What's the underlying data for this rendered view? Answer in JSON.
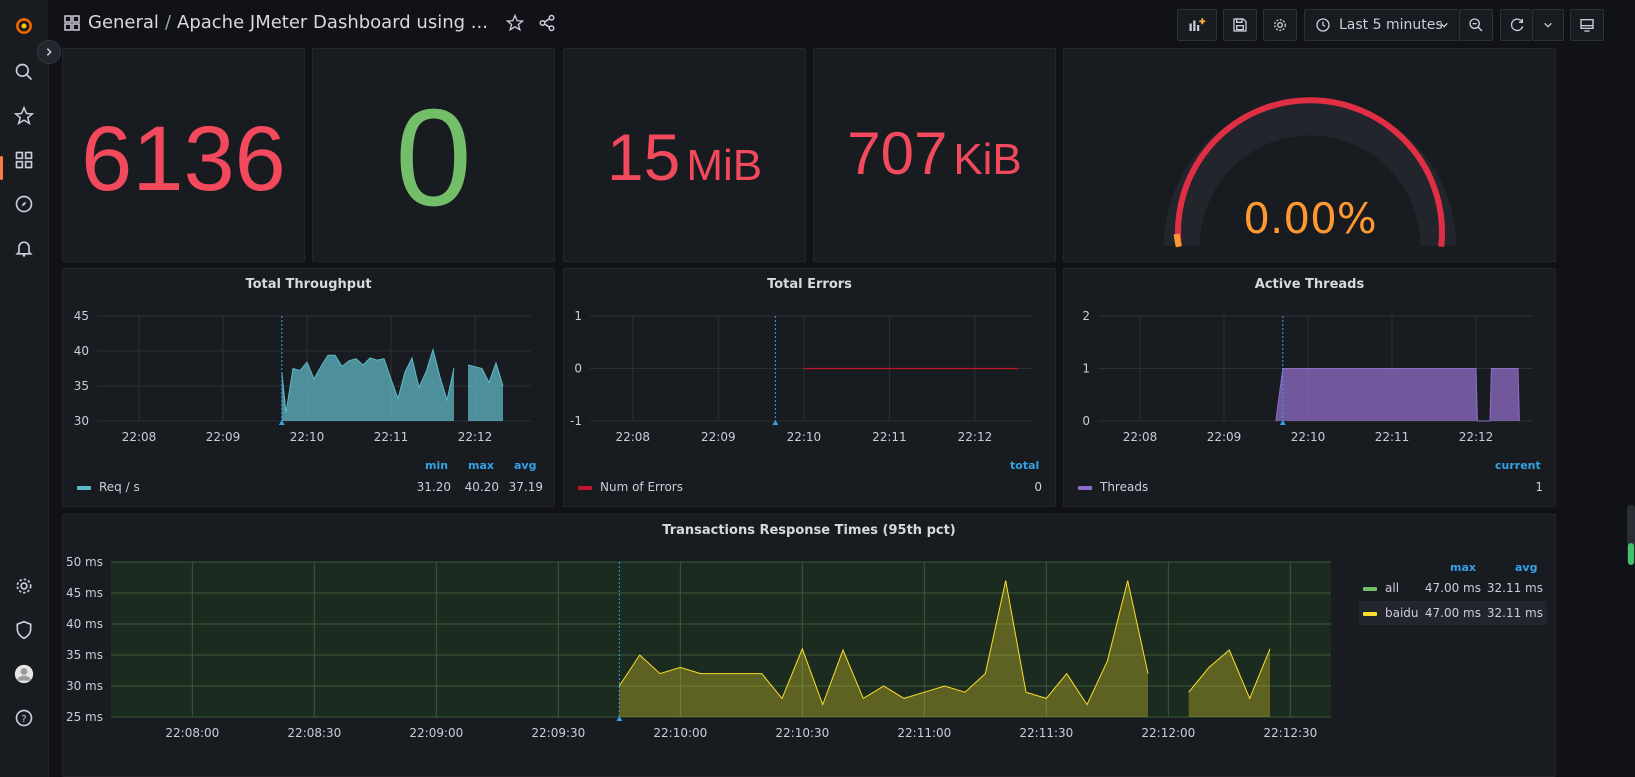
{
  "breadcrumb": {
    "folder": "General",
    "separator": "/",
    "title": "Apache JMeter Dashboard using ..."
  },
  "toolbar": {
    "time_range": "Last 5 minutes"
  },
  "stats": [
    {
      "value": "6136",
      "unit": ""
    },
    {
      "value": "0",
      "unit": ""
    },
    {
      "value": "15",
      "unit": "MiB"
    },
    {
      "value": "707",
      "unit": "KiB"
    }
  ],
  "gauge": {
    "value": "0.00%",
    "fraction": 0.0
  },
  "panels": {
    "throughput": {
      "title": "Total Throughput",
      "legend": {
        "headers": [
          "min",
          "max",
          "avg"
        ],
        "name": "Req / s",
        "values": [
          "31.20",
          "40.20",
          "37.19"
        ]
      }
    },
    "errors": {
      "title": "Total Errors",
      "legend": {
        "headers": [
          "total"
        ],
        "name": "Num of Errors",
        "values": [
          "0"
        ]
      }
    },
    "threads": {
      "title": "Active Threads",
      "legend": {
        "headers": [
          "current"
        ],
        "name": "Threads",
        "values": [
          "1"
        ]
      }
    },
    "response": {
      "title": "Transactions Response Times (95th pct)",
      "legend": {
        "headers": [
          "max",
          "avg"
        ],
        "rows": [
          {
            "name": "all",
            "values": [
              "47.00 ms",
              "32.11 ms"
            ]
          },
          {
            "name": "baidu",
            "values": [
              "47.00 ms",
              "32.11 ms"
            ]
          }
        ]
      }
    }
  },
  "colors": {
    "stat_red": "#f2495c",
    "stat_green": "#73bf69",
    "gauge_orange": "#ff9830",
    "throughput": "#5fb8c5",
    "errors": "#c4162a",
    "threads": "#8f6ec7",
    "all": "#73bf69",
    "baidu": "#fade2a",
    "axis_header": "#33a2e5"
  },
  "chart_data": [
    {
      "type": "area",
      "title": "Total Throughput",
      "x_ticks": [
        "22:08",
        "22:09",
        "22:10",
        "22:11",
        "22:12"
      ],
      "ylim": [
        30,
        45
      ],
      "y_ticks": [
        30,
        35,
        40,
        45
      ],
      "series": [
        {
          "name": "Req / s",
          "x": [
            "22:09:42",
            "22:09:45",
            "22:09:50",
            "22:09:55",
            "22:10:00",
            "22:10:05",
            "22:10:10",
            "22:10:15",
            "22:10:20",
            "22:10:25",
            "22:10:30",
            "22:10:35",
            "22:10:40",
            "22:10:45",
            "22:10:50",
            "22:10:55",
            "22:11:00",
            "22:11:05",
            "22:11:10",
            "22:11:15",
            "22:11:20",
            "22:11:25",
            "22:11:30",
            "22:11:35",
            "22:11:40",
            "22:11:45",
            "22:11:50",
            "22:11:55",
            "22:12:05",
            "22:12:10",
            "22:12:15",
            "22:12:20"
          ],
          "values": [
            37.0,
            31.2,
            37.5,
            37.2,
            38.4,
            36.0,
            37.8,
            39.4,
            39.4,
            37.8,
            38.6,
            38.9,
            38.0,
            39.0,
            38.7,
            38.9,
            36.0,
            33.2,
            37.0,
            39.0,
            34.8,
            37.0,
            40.2,
            36.3,
            33.0,
            37.6,
            null,
            38.0,
            37.5,
            35.5,
            38.3,
            35.0
          ]
        }
      ]
    },
    {
      "type": "line",
      "title": "Total Errors",
      "x_ticks": [
        "22:08",
        "22:09",
        "22:10",
        "22:11",
        "22:12"
      ],
      "ylim": [
        -1,
        1
      ],
      "y_ticks": [
        -1,
        0,
        1
      ],
      "series": [
        {
          "name": "Num of Errors",
          "x": [
            "22:10",
            "22:12:30"
          ],
          "values": [
            0,
            0
          ]
        }
      ]
    },
    {
      "type": "area",
      "title": "Active Threads",
      "x_ticks": [
        "22:08",
        "22:09",
        "22:10",
        "22:11",
        "22:12"
      ],
      "ylim": [
        0,
        2
      ],
      "y_ticks": [
        0,
        1,
        2
      ],
      "series": [
        {
          "name": "Threads",
          "x": [
            "22:09:37",
            "22:09:42",
            "22:10:00",
            "22:11:00",
            "22:12:00",
            "22:12:01",
            "22:12:10",
            "22:12:11",
            "22:12:30",
            "22:12:31"
          ],
          "values": [
            0,
            1,
            1,
            1,
            1,
            0,
            0,
            1,
            1,
            0
          ]
        }
      ]
    },
    {
      "type": "area",
      "title": "Transactions Response Times (95th pct)",
      "x_ticks": [
        "22:08:00",
        "22:08:30",
        "22:09:00",
        "22:09:30",
        "22:10:00",
        "22:10:30",
        "22:11:00",
        "22:11:30",
        "22:12:00",
        "22:12:30"
      ],
      "ylim": [
        25,
        50
      ],
      "y_ticks": [
        "25 ms",
        "30 ms",
        "35 ms",
        "40 ms",
        "45 ms",
        "50 ms"
      ],
      "series": [
        {
          "name": "baidu",
          "x": [
            "22:09:45",
            "22:09:50",
            "22:09:55",
            "22:10:00",
            "22:10:05",
            "22:10:10",
            "22:10:15",
            "22:10:20",
            "22:10:25",
            "22:10:30",
            "22:10:35",
            "22:10:40",
            "22:10:45",
            "22:10:50",
            "22:10:55",
            "22:11:00",
            "22:11:05",
            "22:11:10",
            "22:11:15",
            "22:11:20",
            "22:11:25",
            "22:11:30",
            "22:11:35",
            "22:11:40",
            "22:11:45",
            "22:11:50",
            "22:11:55",
            "22:12:00",
            "22:12:05",
            "22:12:10",
            "22:12:15",
            "22:12:20",
            "22:12:25",
            "22:12:30"
          ],
          "values": [
            30,
            35,
            32,
            33,
            32,
            32,
            32,
            32,
            28,
            36,
            27,
            35.8,
            28,
            30,
            28,
            29,
            30,
            29,
            32,
            47,
            29,
            28,
            32,
            27,
            34,
            47,
            32,
            null,
            29,
            33,
            35.8,
            28,
            36,
            null
          ]
        }
      ]
    }
  ]
}
